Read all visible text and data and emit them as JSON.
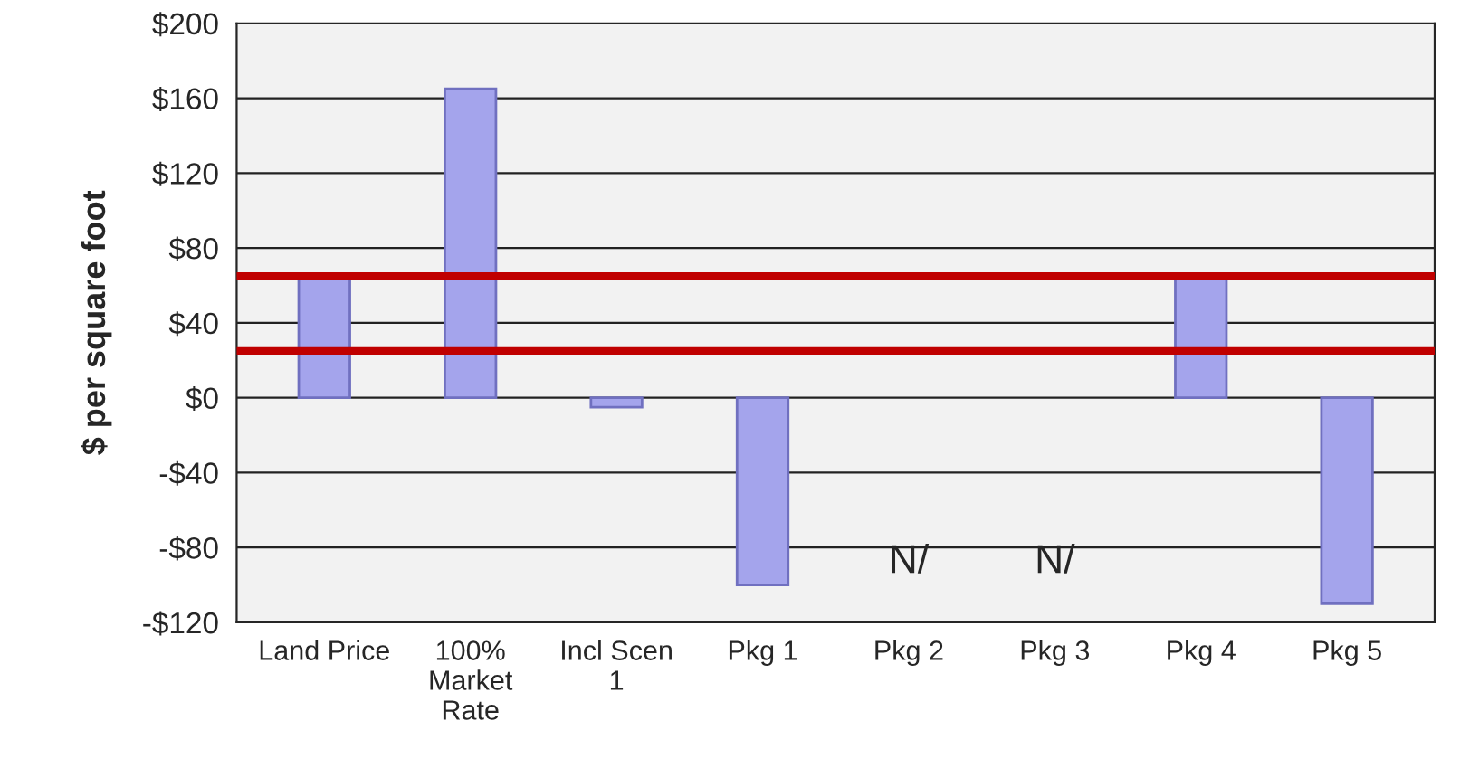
{
  "chart_data": {
    "type": "bar",
    "ylabel": "$ per square foot",
    "categories": [
      "Land Price",
      "100%\nMarket\nRate",
      "Incl Scen\n1",
      "Pkg 1",
      "Pkg 2",
      "Pkg 3",
      "Pkg 4",
      "Pkg 5"
    ],
    "values": [
      65,
      165,
      -5,
      -100,
      null,
      null,
      65,
      -110
    ],
    "color": "#a4a4ec",
    "ylim": [
      -120,
      200
    ],
    "yticks": [
      {
        "value": 200,
        "label": "$200"
      },
      {
        "value": 160,
        "label": "$160"
      },
      {
        "value": 120,
        "label": "$120"
      },
      {
        "value": 80,
        "label": "$80"
      },
      {
        "value": 40,
        "label": "$40"
      },
      {
        "value": 0,
        "label": "$0"
      },
      {
        "value": -40,
        "label": "-$40"
      },
      {
        "value": -80,
        "label": "-$80"
      },
      {
        "value": -120,
        "label": "-$120"
      }
    ],
    "grid": "y",
    "ref_lines": [
      {
        "axis": "y",
        "value": 65,
        "color": "#c00000"
      },
      {
        "axis": "y",
        "value": 25,
        "color": "#c00000"
      }
    ],
    "annotations": [
      "N/",
      "N/"
    ]
  }
}
